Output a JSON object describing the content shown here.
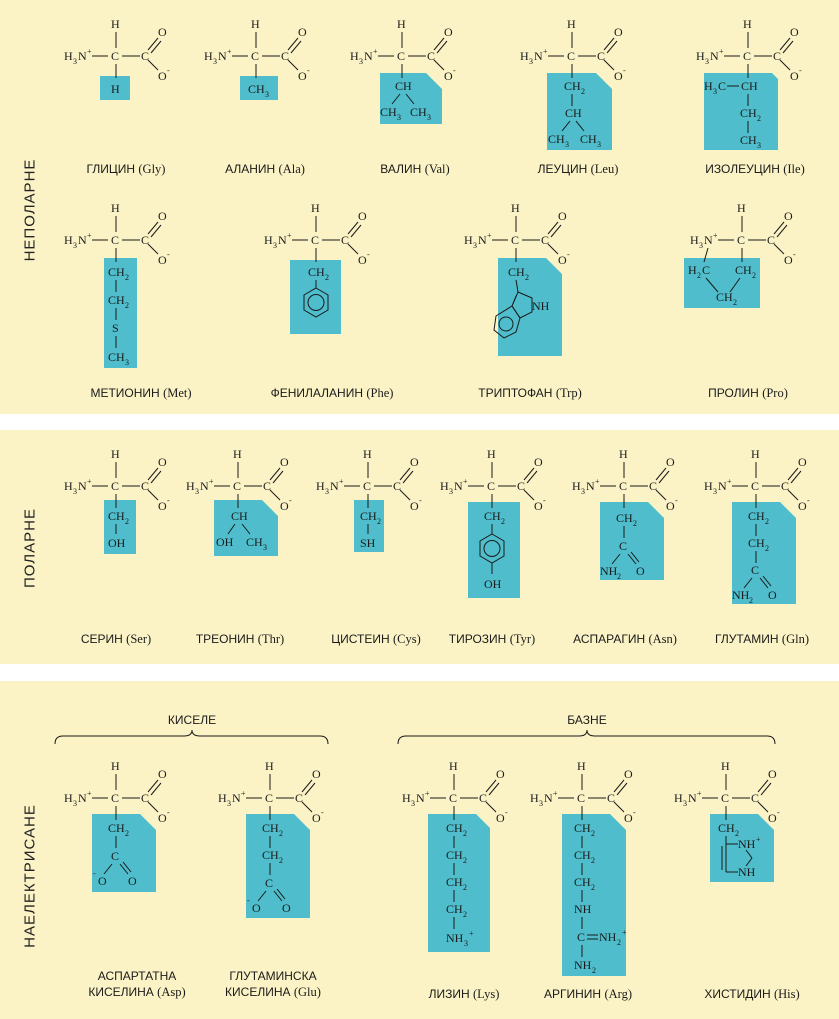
{
  "sections": {
    "nonpolar": "НЕПОЛАРНЕ",
    "polar": "ПОЛАРНЕ",
    "charged": "НАЕЛЕКТРИСАНЕ",
    "acidic": "КИСЕЛЕ",
    "basic": "БАЗНЕ"
  },
  "backbone": {
    "amine": "H",
    "three": "3",
    "n": "N",
    "plus": "+",
    "alpha_c": "C",
    "carbonyl_c": "C",
    "o": "O",
    "minus": "-",
    "h": "H"
  },
  "amino_acids": {
    "gly": {
      "name": "ГЛИЦИН",
      "abbr": "(Gly)",
      "r": [
        "H"
      ]
    },
    "ala": {
      "name": "АЛАНИН",
      "abbr": "(Ala)",
      "r": [
        "CH",
        "3"
      ]
    },
    "val": {
      "name": "ВАЛИН",
      "abbr": "(Val)",
      "r": [
        "CH",
        "CH",
        "3",
        "CH",
        "3"
      ]
    },
    "leu": {
      "name": "ЛЕУЦИН",
      "abbr": "(Leu)",
      "r": [
        "CH",
        "2",
        "CH",
        "CH",
        "3",
        "CH",
        "3"
      ]
    },
    "ile": {
      "name": "ИЗОЛЕУЦИН",
      "abbr": "(Ile)",
      "r": [
        "H",
        "3",
        "C",
        "CH",
        "CH",
        "2",
        "CH",
        "3"
      ]
    },
    "met": {
      "name": "МЕТИОНИН",
      "abbr": "(Met)",
      "r": [
        "CH",
        "2",
        "CH",
        "2",
        "S",
        "CH",
        "3"
      ]
    },
    "phe": {
      "name": "ФЕНИЛАЛАНИН",
      "abbr": "(Phe)",
      "r": [
        "CH",
        "2"
      ]
    },
    "trp": {
      "name": "ТРИПТОФАН",
      "abbr": "(Trp)",
      "r": [
        "CH",
        "2",
        "NH"
      ]
    },
    "pro": {
      "name": "ПРОЛИН",
      "abbr": "(Pro)",
      "r": [
        "H",
        "2",
        "C",
        "CH",
        "2",
        "CH",
        "2"
      ]
    },
    "ser": {
      "name": "СЕРИН",
      "abbr": "(Ser)",
      "r": [
        "CH",
        "2",
        "OH"
      ]
    },
    "thr": {
      "name": "ТРЕОНИН",
      "abbr": "(Thr)",
      "r": [
        "CH",
        "OH",
        "CH",
        "3"
      ]
    },
    "cys": {
      "name": "ЦИСТЕИН",
      "abbr": "(Cys)",
      "r": [
        "CH",
        "2",
        "SH"
      ]
    },
    "tyr": {
      "name": "ТИРОЗИН",
      "abbr": "(Tyr)",
      "r": [
        "CH",
        "2",
        "OH"
      ]
    },
    "asn": {
      "name": "АСПАРАГИН",
      "abbr": "(Asn)",
      "r": [
        "CH",
        "2",
        "C",
        "NH",
        "2",
        "O"
      ]
    },
    "gln": {
      "name": "ГЛУТАМИН",
      "abbr": "(Gln)",
      "r": [
        "CH",
        "2",
        "CH",
        "2",
        "C",
        "NH",
        "2",
        "O"
      ]
    },
    "asp": {
      "name1": "АСПАРТАТНА",
      "name2": "КИСЕЛИНА",
      "abbr": "(Asp)",
      "r": [
        "CH",
        "2",
        "C",
        "O",
        "-",
        "O"
      ]
    },
    "glu": {
      "name1": "ГЛУТАМИНСКА",
      "name2": "КИСЕЛИНА",
      "abbr": "(Glu)",
      "r": [
        "CH",
        "2",
        "CH",
        "2",
        "C",
        "O",
        "-",
        "O"
      ]
    },
    "lys": {
      "name": "ЛИЗИН",
      "abbr": "(Lys)",
      "r": [
        "CH",
        "2",
        "CH",
        "2",
        "CH",
        "2",
        "CH",
        "2",
        "NH",
        "3",
        "+"
      ]
    },
    "arg": {
      "name": "АРГИНИН",
      "abbr": "(Arg)",
      "r": [
        "CH",
        "2",
        "CH",
        "2",
        "CH",
        "2",
        "NH",
        "C",
        "NH",
        "2",
        "+",
        "NH",
        "2"
      ]
    },
    "his": {
      "name": "ХИСТИДИН",
      "abbr": "(His)",
      "r": [
        "CH",
        "2",
        "NH",
        "+",
        "NH"
      ]
    }
  },
  "colors": {
    "panel_bg": "#fbf3c6",
    "side_chain_box": "#4fbdcb",
    "text": "#1a1a1a"
  }
}
